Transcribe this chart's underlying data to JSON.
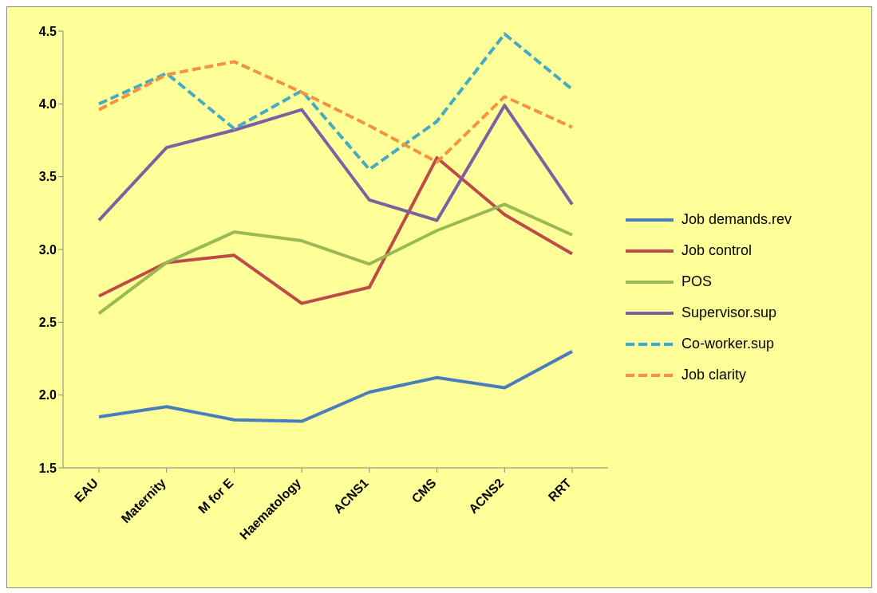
{
  "chart_data": {
    "type": "line",
    "categories": [
      "EAU",
      "Maternity",
      "M for E",
      "Haematology",
      "ACNS1",
      "CMS",
      "ACNS2",
      "RRT"
    ],
    "series": [
      {
        "name": "Job demands.rev",
        "color": "#4a7ebb",
        "line_style": "solid",
        "values": [
          1.85,
          1.92,
          1.83,
          1.82,
          2.02,
          2.12,
          2.05,
          2.3
        ]
      },
      {
        "name": "Job control",
        "color": "#be4b48",
        "line_style": "solid",
        "values": [
          2.68,
          2.91,
          2.96,
          2.63,
          2.74,
          3.63,
          3.24,
          2.97
        ]
      },
      {
        "name": "POS",
        "color": "#98b954",
        "line_style": "solid",
        "values": [
          2.56,
          2.91,
          3.12,
          3.06,
          2.9,
          3.13,
          3.31,
          3.1
        ]
      },
      {
        "name": "Supervisor.sup",
        "color": "#7d60a0",
        "line_style": "solid",
        "values": [
          3.2,
          3.7,
          3.82,
          3.96,
          3.34,
          3.2,
          3.99,
          3.31
        ]
      },
      {
        "name": "Co-worker.sup",
        "color": "#46aac5",
        "line_style": "dashed",
        "values": [
          4.0,
          4.21,
          3.83,
          4.09,
          3.55,
          3.88,
          4.48,
          4.1
        ]
      },
      {
        "name": "Job clarity",
        "color": "#f69240",
        "line_style": "dashed",
        "values": [
          3.96,
          4.2,
          4.29,
          4.08,
          3.85,
          3.6,
          4.05,
          3.84
        ]
      }
    ],
    "ylim": [
      1.5,
      4.5
    ],
    "yticks": [
      {
        "value": 1.5,
        "label": "1.5"
      },
      {
        "value": 2,
        "label": "2.0"
      },
      {
        "value": 2.5,
        "label": "2.5"
      },
      {
        "value": 3,
        "label": "3.0"
      },
      {
        "value": 3.5,
        "label": "3.5"
      },
      {
        "value": 4,
        "label": "4.0"
      },
      {
        "value": 4.5,
        "label": "4.5"
      }
    ],
    "grid": false,
    "legend": "right",
    "marker": "none"
  }
}
